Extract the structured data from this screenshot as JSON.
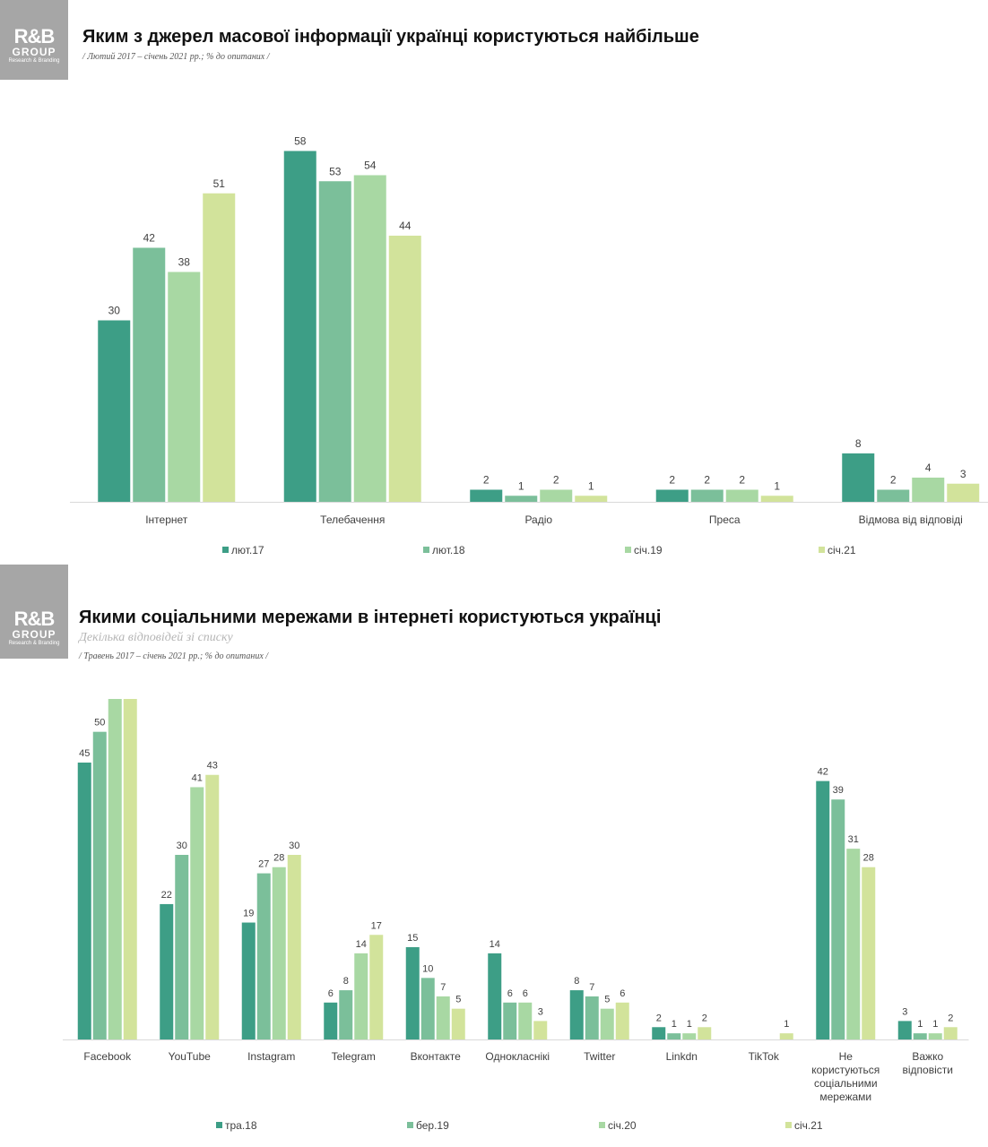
{
  "logo": {
    "mark": "R&B",
    "group": "GROUP",
    "tagline": "Research & Branding"
  },
  "colors": [
    "#3d9e86",
    "#7bbf9a",
    "#a8d8a3",
    "#d2e39b"
  ],
  "chart_data": [
    {
      "type": "bar",
      "title": "Яким з джерел масової інформації українці користуються найбільше",
      "subtitle": "/ Лютий 2017 – січень 2021 рр.; % до опитаних /",
      "categories": [
        "Інтернет",
        "Телебачення",
        "Радіо",
        "Преса",
        "Відмова від відповіді"
      ],
      "series": [
        {
          "name": "лют.17",
          "values": [
            30,
            58,
            2,
            2,
            8
          ]
        },
        {
          "name": "лют.18",
          "values": [
            42,
            53,
            1,
            2,
            2
          ]
        },
        {
          "name": "січ.19",
          "values": [
            38,
            54,
            2,
            2,
            4
          ]
        },
        {
          "name": "січ.21",
          "values": [
            51,
            44,
            1,
            1,
            3
          ]
        }
      ],
      "ylim": [
        0,
        60
      ],
      "xlabel": "",
      "ylabel": "",
      "legend": "bottom"
    },
    {
      "type": "bar",
      "title": "Якими соціальними мережами в інтернеті користуються українці",
      "hint": "Декілька відповідей зі списку",
      "subtitle": "/ Травень 2017 – січень 2021 рр.; % до опитаних /",
      "categories": [
        "Facebook",
        "YouTube",
        "Instagram",
        "Telegram",
        "Вконтакте",
        "Однокласнікі",
        "Twitter",
        "Linkdn",
        "TikTok",
        "Не користуються соціальними мережами",
        "Важко відповісти"
      ],
      "series": [
        {
          "name": "тра.18",
          "values": [
            45,
            22,
            19,
            6,
            15,
            14,
            8,
            2,
            null,
            42,
            3
          ]
        },
        {
          "name": "бер.19",
          "values": [
            50,
            30,
            27,
            8,
            10,
            6,
            7,
            1,
            null,
            39,
            1
          ]
        },
        {
          "name": "січ.20",
          "values": [
            58,
            41,
            28,
            14,
            7,
            6,
            5,
            1,
            null,
            31,
            1
          ]
        },
        {
          "name": "січ.21",
          "values": [
            59,
            43,
            30,
            17,
            5,
            3,
            6,
            2,
            1,
            28,
            2
          ]
        }
      ],
      "ylim": [
        0,
        60
      ],
      "xlabel": "",
      "ylabel": "",
      "legend": "bottom"
    }
  ]
}
